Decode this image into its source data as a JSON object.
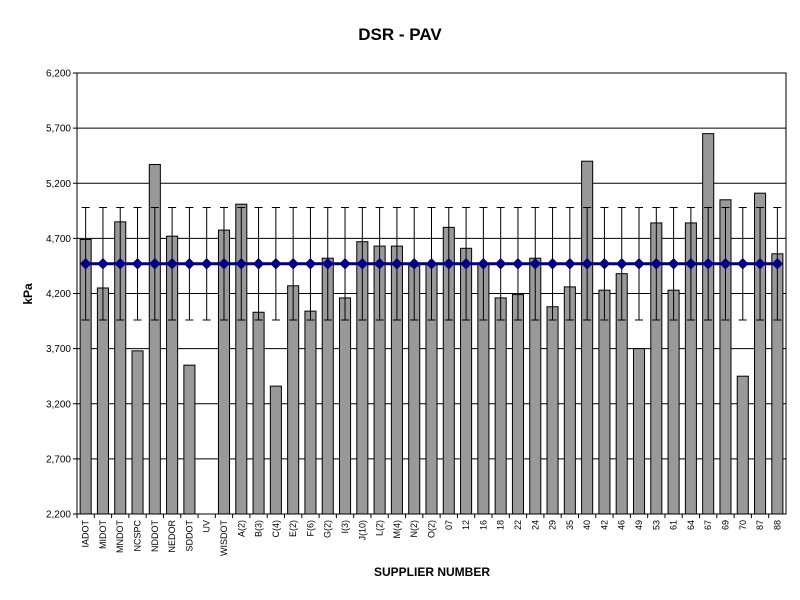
{
  "chart_data": {
    "type": "bar",
    "title": "DSR - PAV",
    "x_label": "SUPPLIER NUMBER",
    "y_label": "kPa",
    "categories": [
      "IADOT",
      "MIDOT",
      "MNDOT",
      "NCSPC",
      "NDDOT",
      "NEDOR",
      "SDDOT",
      "UV",
      "WISDOT",
      "A(2)",
      "B(3)",
      "C(4)",
      "E(2)",
      "F(6)",
      "G(2)",
      "I(3)",
      "J(10)",
      "L(2)",
      "M(4)",
      "N(2)",
      "O(2)",
      "07",
      "12",
      "16",
      "18",
      "22",
      "24",
      "29",
      "35",
      "40",
      "42",
      "46",
      "49",
      "53",
      "61",
      "64",
      "67",
      "69",
      "70",
      "87",
      "88"
    ],
    "series": [
      {
        "type": "bar",
        "color": "#999999",
        "values": [
          4690,
          4250,
          4850,
          3680,
          5370,
          4720,
          3550,
          null,
          4775,
          5010,
          4030,
          3360,
          4270,
          4040,
          4520,
          4160,
          4670,
          4630,
          4630,
          4450,
          4460,
          4800,
          4610,
          4470,
          4160,
          4190,
          4520,
          4080,
          4260,
          5400,
          4230,
          4380,
          3700,
          4840,
          4230,
          4840,
          5650,
          5050,
          3450,
          5110,
          4560
        ]
      },
      {
        "type": "line",
        "color": "#000080",
        "values": [
          4470,
          4470,
          4470,
          4470,
          4470,
          4470,
          4470,
          4470,
          4470,
          4470,
          4470,
          4470,
          4470,
          4470,
          4470,
          4470,
          4470,
          4470,
          4470,
          4470,
          4470,
          4470,
          4470,
          4470,
          4470,
          4470,
          4470,
          4470,
          4470,
          4470,
          4470,
          4470,
          4470,
          4470,
          4470,
          4470,
          4470,
          4470,
          4470,
          4470,
          4470
        ],
        "errors": [
          510,
          510,
          510,
          510,
          510,
          510,
          510,
          510,
          510,
          510,
          510,
          510,
          510,
          510,
          510,
          510,
          510,
          510,
          510,
          510,
          510,
          510,
          510,
          510,
          510,
          510,
          510,
          510,
          510,
          510,
          510,
          510,
          510,
          510,
          510,
          510,
          510,
          510,
          510,
          510,
          510
        ]
      }
    ],
    "ylim": [
      2200,
      6200
    ],
    "yticks": [
      {
        "value": 2200,
        "label": "2,200"
      },
      {
        "value": 2700,
        "label": "2,700"
      },
      {
        "value": 3200,
        "label": "3,200"
      },
      {
        "value": 3700,
        "label": "3,700"
      },
      {
        "value": 4200,
        "label": "4,200"
      },
      {
        "value": 4700,
        "label": "4,700"
      },
      {
        "value": 5200,
        "label": "5,200"
      },
      {
        "value": 5700,
        "label": "5,700"
      },
      {
        "value": 6200,
        "label": "6,200"
      }
    ],
    "grid": true
  }
}
